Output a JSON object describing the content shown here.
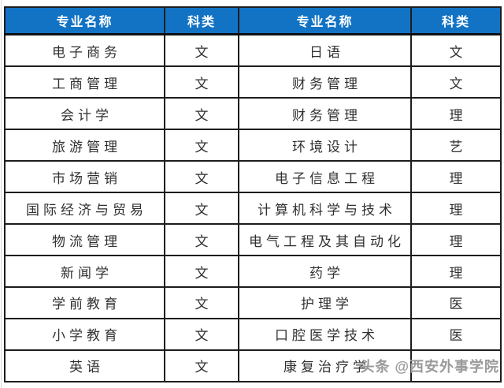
{
  "table": {
    "headers": [
      "专业名称",
      "科类",
      "专业名称",
      "科类"
    ],
    "rows": [
      [
        "电子商务",
        "文",
        "日语",
        "文"
      ],
      [
        "工商管理",
        "文",
        "财务管理",
        "文"
      ],
      [
        "会计学",
        "文",
        "财务管理",
        "理"
      ],
      [
        "旅游管理",
        "文",
        "环境设计",
        "艺"
      ],
      [
        "市场营销",
        "文",
        "电子信息工程",
        "理"
      ],
      [
        "国际经济与贸易",
        "文",
        "计算机科学与技术",
        "理"
      ],
      [
        "物流管理",
        "文",
        "电气工程及其自动化",
        "理"
      ],
      [
        "新闻学",
        "文",
        "药学",
        "理"
      ],
      [
        "学前教育",
        "文",
        "护理学",
        "医"
      ],
      [
        "小学教育",
        "文",
        "口腔医学技术",
        "医"
      ],
      [
        "英语",
        "文",
        "康复治疗学",
        ""
      ]
    ]
  },
  "watermark": {
    "text": "头条 @西安外事学院"
  },
  "colors": {
    "header_bg": "#1273c4",
    "header_text": "#ffffff",
    "border": "#1d1d1d",
    "body_text": "#303030",
    "watermark": "#9a9a9a"
  }
}
